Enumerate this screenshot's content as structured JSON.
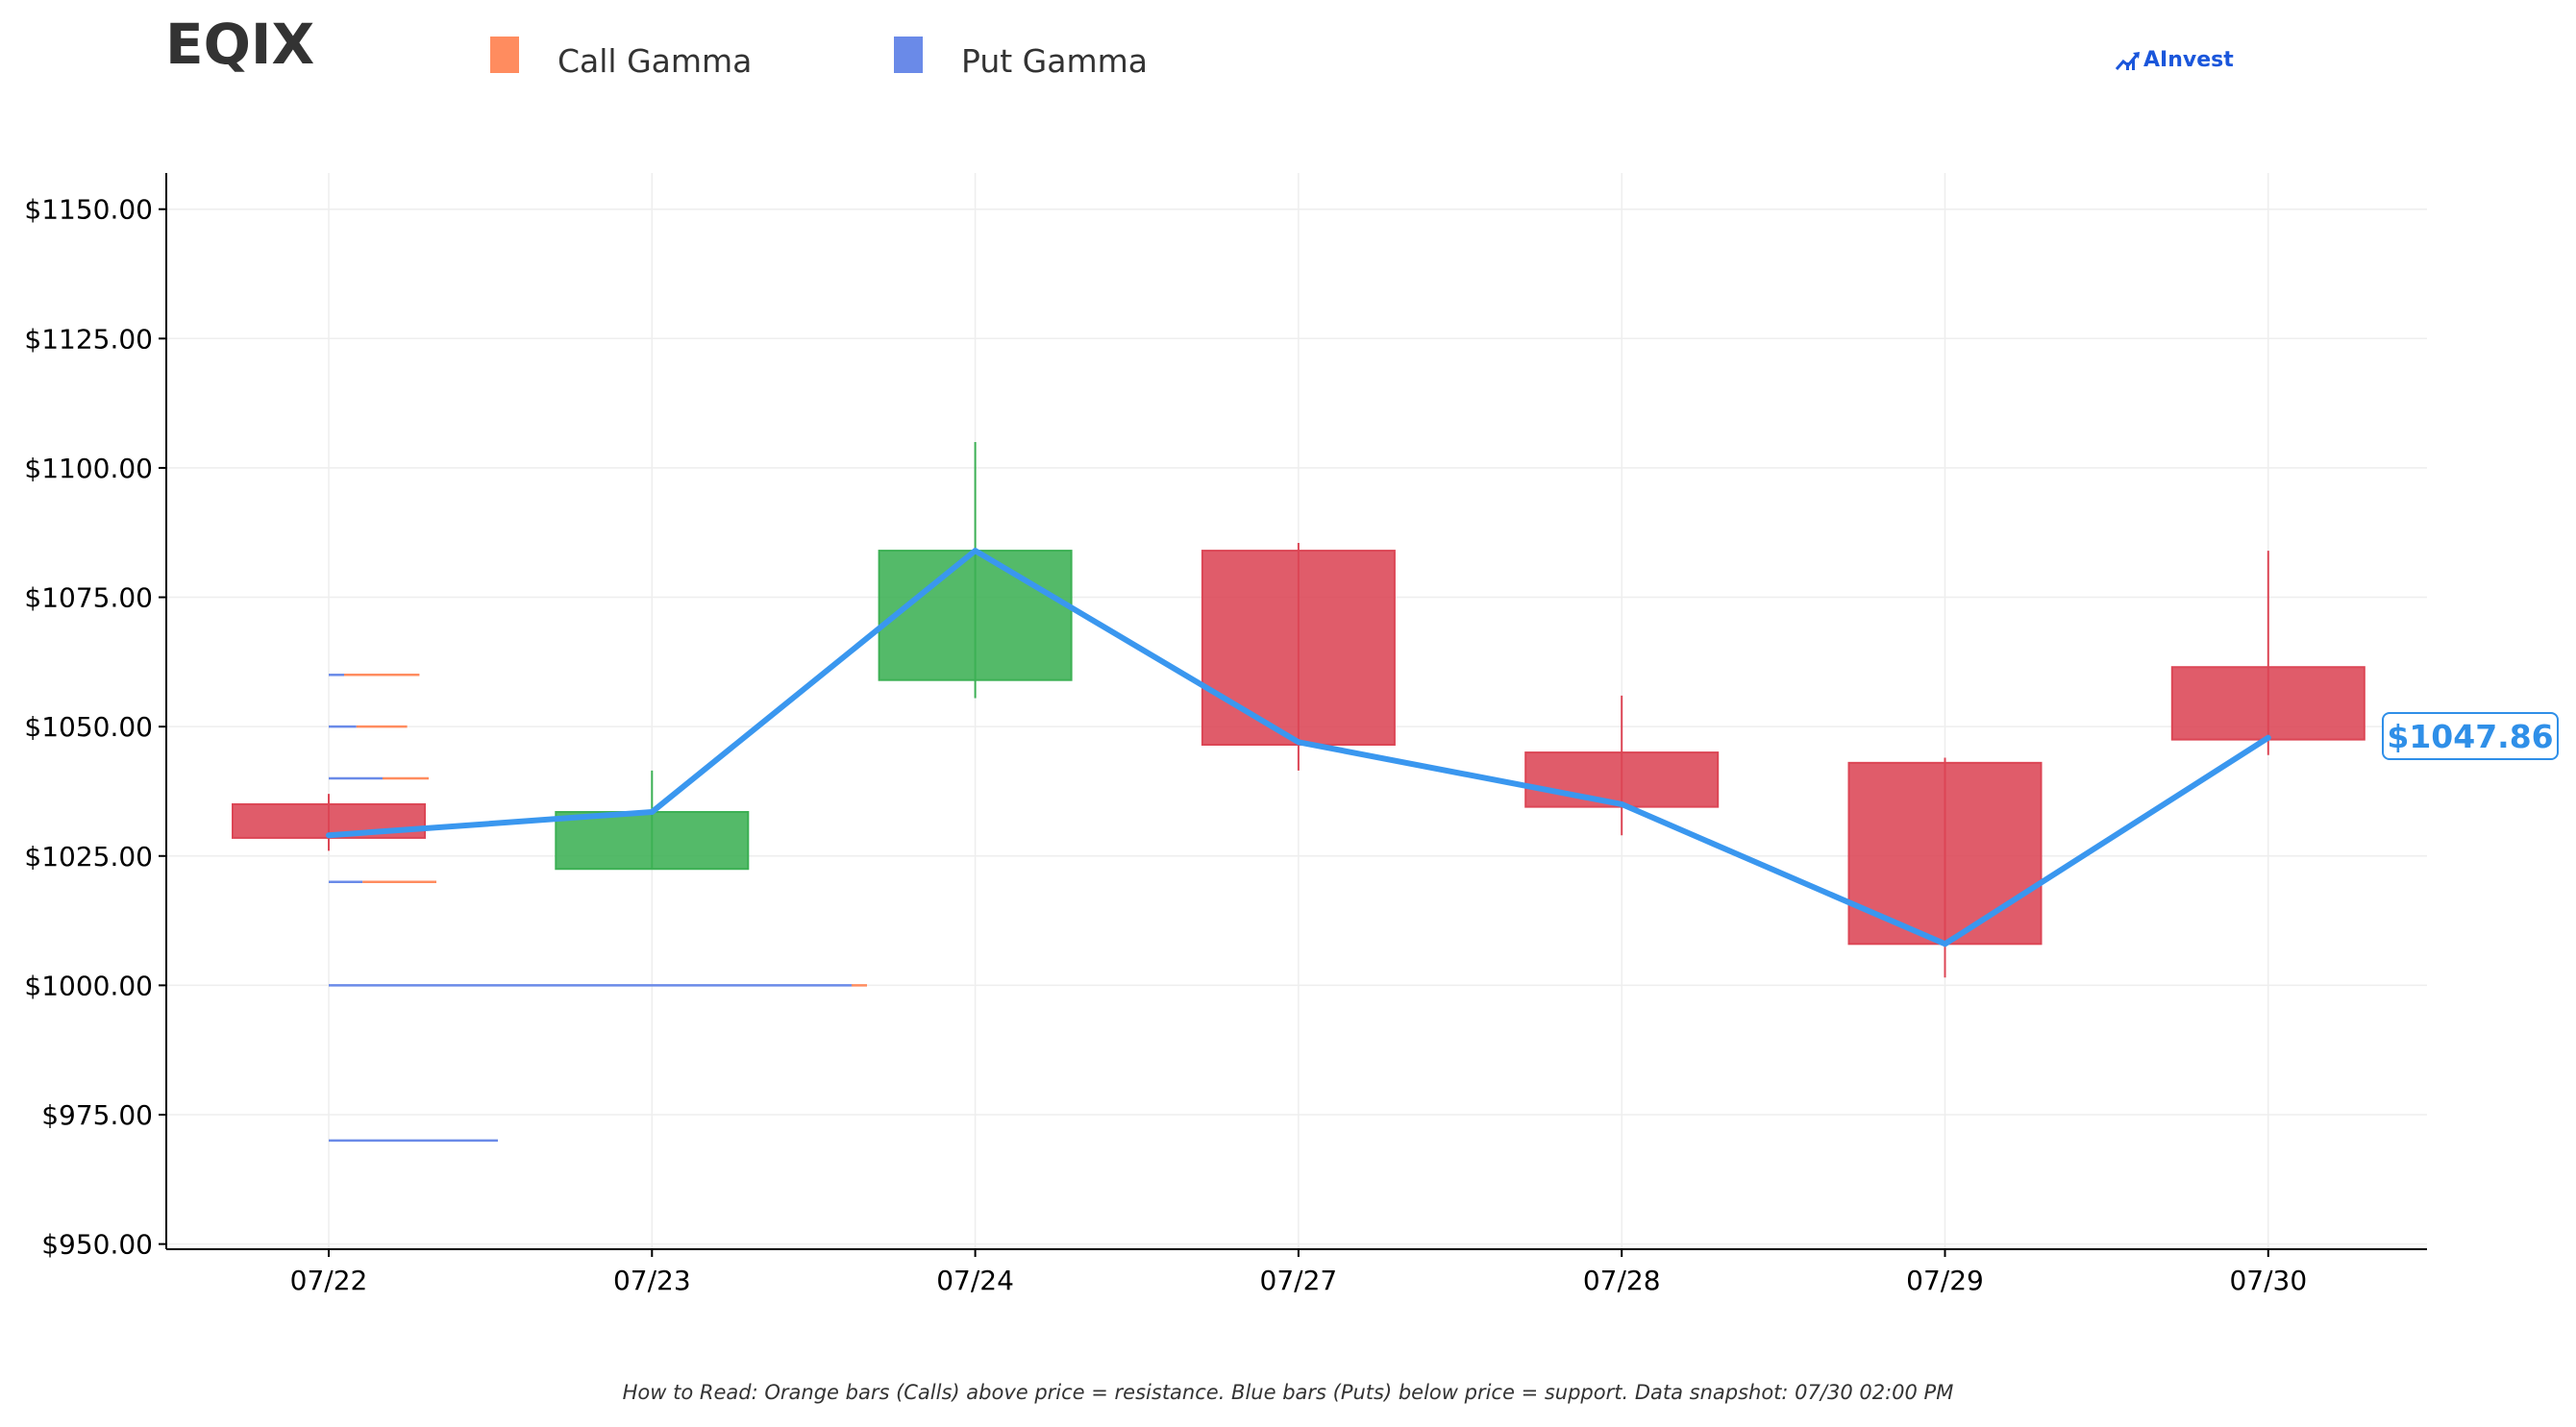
{
  "header": {
    "ticker": "EQIX",
    "legend": [
      {
        "label": "Call Gamma",
        "color": "#ff8c5f"
      },
      {
        "label": "Put Gamma",
        "color": "#6a8ae8"
      }
    ],
    "brand": "AInvest"
  },
  "footer": {
    "note": "How to Read: Orange bars (Calls) above price = resistance. Blue bars (Puts) below price = support. Data snapshot: 07/30 02:00 PM"
  },
  "price_tag": "$1047.86",
  "colors": {
    "up": "#3cb054",
    "down": "#dc4655",
    "line": "#3a97ef",
    "call": "#ff8c5f",
    "put": "#6a8ae8",
    "grid": "#eeeeee",
    "axis": "#000000"
  },
  "chart_data": {
    "type": "candlestick",
    "categories": [
      "07/22",
      "07/23",
      "07/24",
      "07/27",
      "07/28",
      "07/29",
      "07/30"
    ],
    "ohlc": [
      {
        "date": "07/22",
        "open": 1035,
        "high": 1037,
        "low": 1026,
        "close": 1028.5
      },
      {
        "date": "07/23",
        "open": 1022.5,
        "high": 1041.5,
        "low": 1022.5,
        "close": 1033.5
      },
      {
        "date": "07/24",
        "open": 1059,
        "high": 1105,
        "low": 1055.5,
        "close": 1084
      },
      {
        "date": "07/27",
        "open": 1084,
        "high": 1085.5,
        "low": 1041.5,
        "close": 1046.5
      },
      {
        "date": "07/28",
        "open": 1045,
        "high": 1056,
        "low": 1029,
        "close": 1034.5
      },
      {
        "date": "07/29",
        "open": 1043,
        "high": 1044,
        "low": 1001.5,
        "close": 1008
      },
      {
        "date": "07/30",
        "open": 1061.5,
        "high": 1084,
        "low": 1044.5,
        "close": 1047.5
      }
    ],
    "price_line": [
      1029,
      1033.5,
      1084,
      1047,
      1035,
      1008,
      1047.86
    ],
    "gamma_levels": [
      {
        "strike": 1060,
        "put": 0.1,
        "call": 0.49
      },
      {
        "strike": 1050,
        "put": 0.18,
        "call": 0.33
      },
      {
        "strike": 1040,
        "put": 0.35,
        "call": 0.3
      },
      {
        "strike": 1020,
        "put": 0.22,
        "call": 0.48
      },
      {
        "strike": 1000,
        "put": 3.4,
        "call": 0.1
      },
      {
        "strike": 970,
        "put": 1.1,
        "call": 0
      }
    ],
    "y_ticks": [
      950,
      975,
      1000,
      1025,
      1050,
      1075,
      1100,
      1125,
      1150
    ],
    "y_tick_labels": [
      "$950.00",
      "$975.00",
      "$1000.00",
      "$1025.00",
      "$1050.00",
      "$1075.00",
      "$1100.00",
      "$1125.00",
      "$1150.00"
    ],
    "ylim": [
      949,
      1157
    ],
    "grid": true,
    "legend_position": "top"
  }
}
